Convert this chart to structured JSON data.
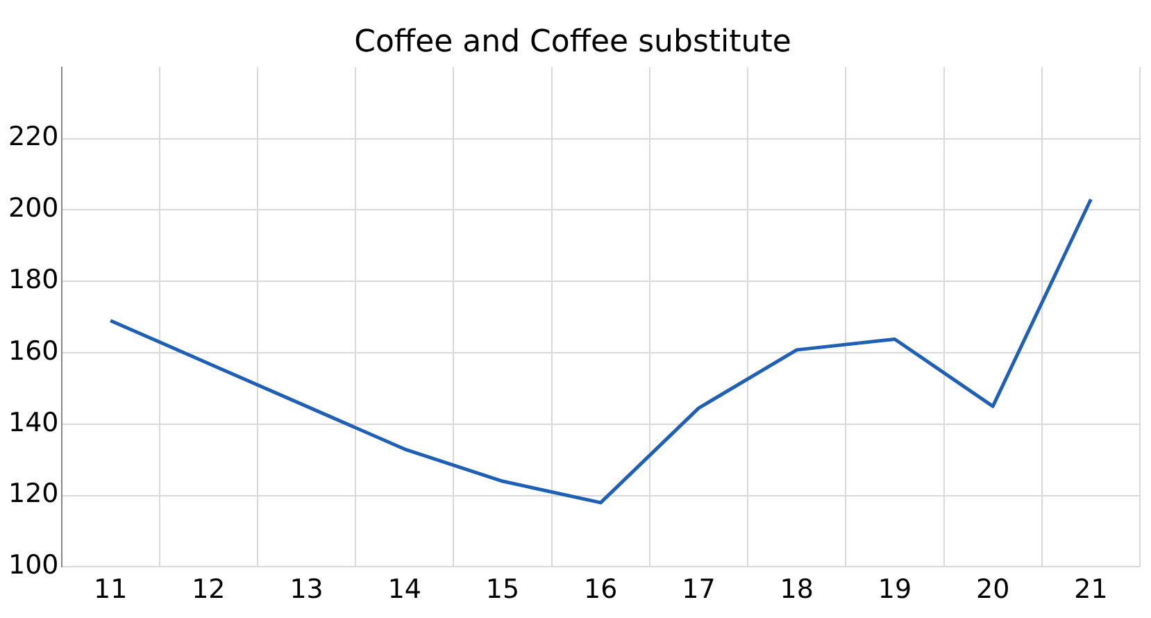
{
  "chart_data": {
    "type": "line",
    "title": "Coffee and Coffee substitute",
    "categories": [
      "11",
      "12",
      "13",
      "14",
      "15",
      "16",
      "17",
      "18",
      "19",
      "20",
      "21"
    ],
    "series": [
      {
        "color": "#1f5fb4",
        "values": [
          169,
          157,
          145,
          133,
          124,
          118,
          144.5,
          160.8,
          163.8,
          145,
          203
        ]
      }
    ],
    "ylim": [
      100,
      240
    ],
    "yticks": [
      100,
      120,
      140,
      160,
      180,
      200,
      220
    ],
    "grid": true,
    "legend": false,
    "marker": "none",
    "line_style": "solid"
  }
}
